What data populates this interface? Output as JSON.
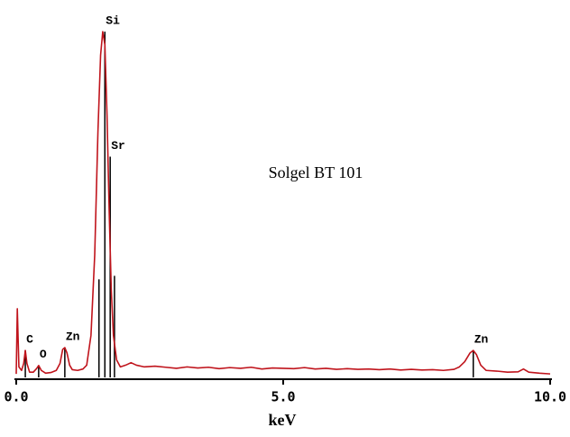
{
  "chart_data": {
    "type": "line",
    "annotation": "Solgel BT 101",
    "x_label": "keV",
    "x": [
      0.0,
      0.02,
      0.05,
      0.1,
      0.14,
      0.17,
      0.2,
      0.25,
      0.32,
      0.38,
      0.42,
      0.47,
      0.55,
      0.65,
      0.75,
      0.82,
      0.87,
      0.91,
      0.95,
      1.0,
      1.05,
      1.15,
      1.25,
      1.32,
      1.4,
      1.47,
      1.53,
      1.58,
      1.62,
      1.66,
      1.7,
      1.74,
      1.78,
      1.82,
      1.88,
      1.95,
      2.05,
      2.15,
      2.25,
      2.4,
      2.6,
      2.8,
      3.0,
      3.2,
      3.4,
      3.6,
      3.8,
      4.0,
      4.2,
      4.4,
      4.6,
      4.8,
      5.0,
      5.2,
      5.4,
      5.6,
      5.8,
      6.0,
      6.2,
      6.4,
      6.6,
      6.8,
      7.0,
      7.2,
      7.4,
      7.6,
      7.8,
      8.0,
      8.2,
      8.3,
      8.4,
      8.5,
      8.56,
      8.62,
      8.7,
      8.8,
      9.0,
      9.2,
      9.4,
      9.5,
      9.6,
      9.8,
      10.0
    ],
    "series": [
      {
        "color": "#c0141c",
        "values": [
          1,
          19.6,
          3,
          2,
          4,
          7.7,
          4,
          1.5,
          1.5,
          2.5,
          3.4,
          2,
          1.2,
          1.4,
          2,
          4,
          8,
          8.5,
          7,
          3.5,
          2.2,
          2,
          2.4,
          3.5,
          12,
          35,
          70,
          92,
          98.7,
          95,
          75,
          48,
          25,
          12,
          5,
          3,
          3.5,
          4.2,
          3.5,
          3,
          3.2,
          2.9,
          2.6,
          3.0,
          2.7,
          2.9,
          2.5,
          2.8,
          2.6,
          2.9,
          2.4,
          2.7,
          2.6,
          2.5,
          2.8,
          2.4,
          2.6,
          2.3,
          2.5,
          2.3,
          2.4,
          2.2,
          2.4,
          2.1,
          2.3,
          2.1,
          2.2,
          2.0,
          2.3,
          3,
          4.5,
          7,
          7.7,
          6.5,
          3.5,
          2,
          1.8,
          1.5,
          1.6,
          2.4,
          1.5,
          1.2,
          1
        ]
      }
    ],
    "markers": {
      "color": "#000000",
      "labels": [
        "C",
        "O",
        "Zn",
        null,
        "Si",
        "Sr",
        null,
        "Zn"
      ],
      "x": [
        0.17,
        0.42,
        0.91,
        1.55,
        1.66,
        1.76,
        1.84,
        8.56
      ],
      "heights": [
        7.7,
        3.4,
        8.5,
        28,
        98.7,
        63,
        29,
        7.7
      ]
    },
    "xlim": [
      0,
      10
    ],
    "ylim": [
      0,
      100
    ],
    "xticks": [
      {
        "value": 0,
        "label": "0.0"
      },
      {
        "value": 5,
        "label": "5.0"
      },
      {
        "value": 10,
        "label": "10.0"
      }
    ]
  }
}
